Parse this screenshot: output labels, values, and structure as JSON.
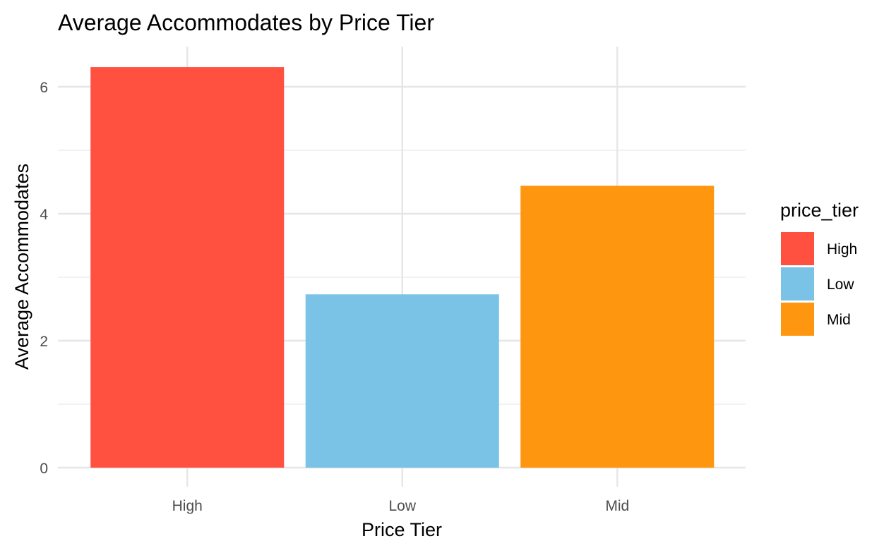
{
  "chart_data": {
    "type": "bar",
    "title": "Average Accommodates by Price Tier",
    "xlabel": "Price Tier",
    "ylabel": "Average Accommodates",
    "categories": [
      "High",
      "Low",
      "Mid"
    ],
    "values": [
      6.31,
      2.73,
      4.44
    ],
    "colors": [
      "#FF5040",
      "#7AC3E6",
      "#FF960F"
    ],
    "ylim": [
      0,
      6.6
    ],
    "yticks": [
      0,
      2,
      4,
      6
    ],
    "grid": true,
    "legend": {
      "title": "price_tier",
      "position": "right",
      "items": [
        {
          "label": "High",
          "color": "#FF5040"
        },
        {
          "label": "Low",
          "color": "#7AC3E6"
        },
        {
          "label": "Mid",
          "color": "#FF960F"
        }
      ]
    }
  }
}
